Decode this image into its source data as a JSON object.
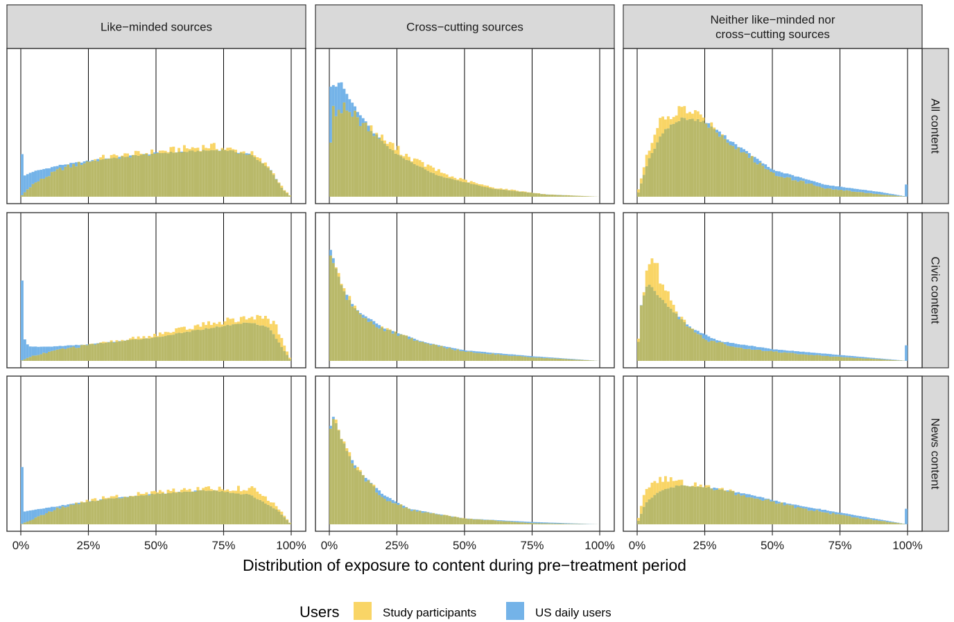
{
  "chart_data": {
    "type": "histogram",
    "xlabel": "Distribution of exposure to content during pre−treatment period",
    "x_ticks": [
      "0%",
      "25%",
      "50%",
      "75%",
      "100%"
    ],
    "xlim": [
      0,
      1
    ],
    "grid": "vertical major lines",
    "columns": [
      {
        "label_lines": [
          "Like−minded sources"
        ]
      },
      {
        "label_lines": [
          "Cross−cutting sources"
        ]
      },
      {
        "label_lines": [
          "Neither like−minded nor",
          "cross−cutting sources"
        ]
      }
    ],
    "rows": [
      {
        "label": "All content"
      },
      {
        "label": "Civic content"
      },
      {
        "label": "News content"
      }
    ],
    "legend": {
      "title": "Users",
      "position": "bottom",
      "items": [
        {
          "label": "Study participants",
          "color": "#f9d566"
        },
        {
          "label": "US daily users",
          "color": "#74b3e8"
        }
      ]
    },
    "series_colors": {
      "study": "#f9d566",
      "us": "#74b3e8",
      "overlap": "#b9b96a"
    },
    "panels": [
      {
        "row": 0,
        "col": 0,
        "us_density": [
          [
            0,
            0.16
          ],
          [
            0.04,
            0.21
          ],
          [
            0.15,
            0.27
          ],
          [
            0.3,
            0.32
          ],
          [
            0.5,
            0.37
          ],
          [
            0.75,
            0.4
          ],
          [
            0.85,
            0.36
          ],
          [
            0.92,
            0.24
          ],
          [
            0.97,
            0.06
          ],
          [
            1.0,
            0.0
          ]
        ],
        "study_density": [
          [
            0,
            0.0
          ],
          [
            0.04,
            0.1
          ],
          [
            0.15,
            0.24
          ],
          [
            0.3,
            0.33
          ],
          [
            0.5,
            0.38
          ],
          [
            0.7,
            0.43
          ],
          [
            0.85,
            0.37
          ],
          [
            0.92,
            0.25
          ],
          [
            0.97,
            0.07
          ],
          [
            1.0,
            0.0
          ]
        ],
        "us_spike_0": 0.2,
        "us_spike_100": 0.0
      },
      {
        "row": 0,
        "col": 1,
        "us_density": [
          [
            0,
            0.5
          ],
          [
            0.015,
            0.93
          ],
          [
            0.04,
            0.98
          ],
          [
            0.08,
            0.82
          ],
          [
            0.15,
            0.58
          ],
          [
            0.25,
            0.36
          ],
          [
            0.4,
            0.18
          ],
          [
            0.6,
            0.07
          ],
          [
            0.8,
            0.02
          ],
          [
            1.0,
            0.0
          ]
        ],
        "study_density": [
          [
            0,
            0.3
          ],
          [
            0.015,
            0.72
          ],
          [
            0.05,
            0.77
          ],
          [
            0.1,
            0.68
          ],
          [
            0.18,
            0.52
          ],
          [
            0.3,
            0.33
          ],
          [
            0.45,
            0.17
          ],
          [
            0.6,
            0.08
          ],
          [
            0.8,
            0.02
          ],
          [
            1.0,
            0.0
          ]
        ],
        "us_spike_0": 0.3,
        "us_spike_100": 0.0
      },
      {
        "row": 0,
        "col": 2,
        "us_density": [
          [
            0,
            0.0
          ],
          [
            0.04,
            0.3
          ],
          [
            0.1,
            0.57
          ],
          [
            0.17,
            0.67
          ],
          [
            0.25,
            0.64
          ],
          [
            0.35,
            0.47
          ],
          [
            0.5,
            0.23
          ],
          [
            0.7,
            0.1
          ],
          [
            0.9,
            0.04
          ],
          [
            1.0,
            0.0
          ]
        ],
        "study_density": [
          [
            0,
            0.02
          ],
          [
            0.03,
            0.3
          ],
          [
            0.08,
            0.62
          ],
          [
            0.17,
            0.75
          ],
          [
            0.25,
            0.66
          ],
          [
            0.35,
            0.45
          ],
          [
            0.5,
            0.2
          ],
          [
            0.7,
            0.07
          ],
          [
            0.9,
            0.02
          ],
          [
            1.0,
            0.0
          ]
        ],
        "us_spike_0": 0.0,
        "us_spike_100": 0.1
      },
      {
        "row": 1,
        "col": 0,
        "us_density": [
          [
            0,
            0.25
          ],
          [
            0.03,
            0.12
          ],
          [
            0.1,
            0.12
          ],
          [
            0.25,
            0.14
          ],
          [
            0.5,
            0.2
          ],
          [
            0.7,
            0.28
          ],
          [
            0.85,
            0.33
          ],
          [
            0.92,
            0.28
          ],
          [
            0.97,
            0.1
          ],
          [
            1.0,
            0.0
          ]
        ],
        "study_density": [
          [
            0,
            0.0
          ],
          [
            0.04,
            0.04
          ],
          [
            0.15,
            0.1
          ],
          [
            0.3,
            0.15
          ],
          [
            0.5,
            0.22
          ],
          [
            0.7,
            0.32
          ],
          [
            0.88,
            0.38
          ],
          [
            0.94,
            0.32
          ],
          [
            0.98,
            0.1
          ],
          [
            1.0,
            0.0
          ]
        ],
        "us_spike_0": 0.45,
        "us_spike_100": 0.0
      },
      {
        "row": 1,
        "col": 1,
        "us_density": [
          [
            0,
            0.98
          ],
          [
            0.02,
            0.82
          ],
          [
            0.05,
            0.62
          ],
          [
            0.1,
            0.43
          ],
          [
            0.2,
            0.28
          ],
          [
            0.35,
            0.16
          ],
          [
            0.5,
            0.09
          ],
          [
            0.75,
            0.04
          ],
          [
            1.0,
            0.0
          ]
        ],
        "study_density": [
          [
            0,
            0.97
          ],
          [
            0.02,
            0.83
          ],
          [
            0.05,
            0.62
          ],
          [
            0.1,
            0.42
          ],
          [
            0.2,
            0.27
          ],
          [
            0.35,
            0.15
          ],
          [
            0.5,
            0.08
          ],
          [
            0.75,
            0.03
          ],
          [
            1.0,
            0.0
          ]
        ],
        "us_spike_0": 0.0,
        "us_spike_100": 0.0
      },
      {
        "row": 1,
        "col": 2,
        "us_density": [
          [
            0,
            0.0
          ],
          [
            0.015,
            0.48
          ],
          [
            0.04,
            0.66
          ],
          [
            0.07,
            0.58
          ],
          [
            0.12,
            0.45
          ],
          [
            0.2,
            0.28
          ],
          [
            0.3,
            0.17
          ],
          [
            0.5,
            0.1
          ],
          [
            0.75,
            0.05
          ],
          [
            1.0,
            0.0
          ]
        ],
        "study_density": [
          [
            0,
            0.02
          ],
          [
            0.015,
            0.5
          ],
          [
            0.04,
            0.82
          ],
          [
            0.06,
            0.86
          ],
          [
            0.1,
            0.62
          ],
          [
            0.15,
            0.38
          ],
          [
            0.25,
            0.18
          ],
          [
            0.4,
            0.1
          ],
          [
            0.7,
            0.04
          ],
          [
            1.0,
            0.0
          ]
        ],
        "us_spike_0": 0.0,
        "us_spike_100": 0.13
      },
      {
        "row": 2,
        "col": 0,
        "us_density": [
          [
            0,
            0.1
          ],
          [
            0.04,
            0.12
          ],
          [
            0.15,
            0.16
          ],
          [
            0.3,
            0.21
          ],
          [
            0.5,
            0.26
          ],
          [
            0.7,
            0.29
          ],
          [
            0.85,
            0.25
          ],
          [
            0.95,
            0.12
          ],
          [
            1.0,
            0.0
          ]
        ],
        "study_density": [
          [
            0,
            0.0
          ],
          [
            0.04,
            0.04
          ],
          [
            0.15,
            0.15
          ],
          [
            0.3,
            0.22
          ],
          [
            0.5,
            0.27
          ],
          [
            0.7,
            0.31
          ],
          [
            0.87,
            0.3
          ],
          [
            0.95,
            0.15
          ],
          [
            1.0,
            0.0
          ]
        ],
        "us_spike_0": 0.38,
        "us_spike_100": 0.0
      },
      {
        "row": 2,
        "col": 1,
        "us_density": [
          [
            0,
            0.8
          ],
          [
            0.015,
            0.92
          ],
          [
            0.05,
            0.7
          ],
          [
            0.1,
            0.48
          ],
          [
            0.2,
            0.25
          ],
          [
            0.3,
            0.13
          ],
          [
            0.5,
            0.05
          ],
          [
            0.75,
            0.02
          ],
          [
            1.0,
            0.0
          ]
        ],
        "study_density": [
          [
            0,
            0.7
          ],
          [
            0.015,
            0.95
          ],
          [
            0.05,
            0.72
          ],
          [
            0.1,
            0.47
          ],
          [
            0.2,
            0.23
          ],
          [
            0.3,
            0.12
          ],
          [
            0.5,
            0.05
          ],
          [
            0.75,
            0.01
          ],
          [
            1.0,
            0.0
          ]
        ],
        "us_spike_0": 0.0,
        "us_spike_100": 0.0
      },
      {
        "row": 2,
        "col": 2,
        "us_density": [
          [
            0,
            0.0
          ],
          [
            0.03,
            0.18
          ],
          [
            0.08,
            0.28
          ],
          [
            0.15,
            0.33
          ],
          [
            0.25,
            0.32
          ],
          [
            0.4,
            0.26
          ],
          [
            0.55,
            0.18
          ],
          [
            0.75,
            0.1
          ],
          [
            0.9,
            0.04
          ],
          [
            1.0,
            0.0
          ]
        ],
        "study_density": [
          [
            0,
            0.0
          ],
          [
            0.02,
            0.22
          ],
          [
            0.06,
            0.38
          ],
          [
            0.12,
            0.38
          ],
          [
            0.2,
            0.34
          ],
          [
            0.3,
            0.3
          ],
          [
            0.45,
            0.22
          ],
          [
            0.6,
            0.14
          ],
          [
            0.8,
            0.06
          ],
          [
            1.0,
            0.0
          ]
        ],
        "us_spike_0": 0.0,
        "us_spike_100": 0.13
      }
    ]
  }
}
